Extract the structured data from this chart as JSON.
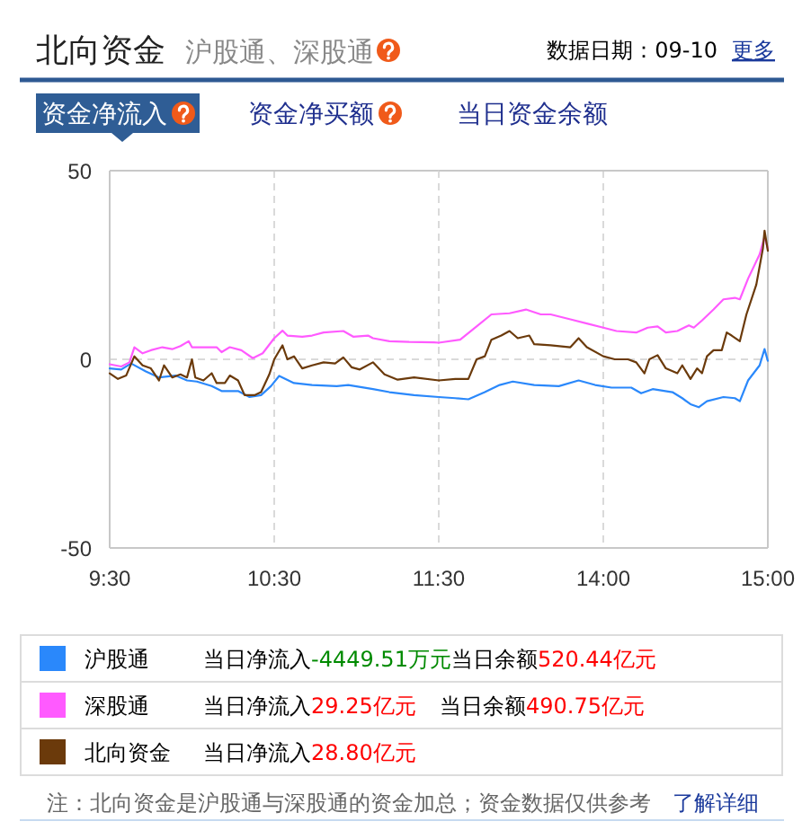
{
  "chart_data": [
    {
      "type": "line",
      "title": "北向资金",
      "subtitle": "沪股通、深股通",
      "xlim": [
        9.5,
        11.5
      ],
      "xticks": [
        {
          "value": 9.5,
          "label": "9:30"
        },
        {
          "value": 10.5,
          "label": "10:30"
        },
        {
          "value": 11.5,
          "label": "11:30"
        }
      ],
      "ylim": [
        -50,
        50
      ],
      "yticks": [
        -50,
        0,
        50
      ],
      "grid": true,
      "legend": "bottom",
      "series": [
        {
          "name": "沪股通",
          "color": "#2a88fb",
          "x": [
            9.5,
            9.57,
            9.63,
            9.72,
            9.8,
            9.9,
            9.97,
            10.03,
            10.12,
            10.18,
            10.28,
            10.35,
            10.42,
            10.48,
            10.53,
            10.62,
            10.73,
            10.88,
            10.95,
            11.1,
            11.2,
            11.35,
            11.5
          ],
          "values": [
            -2.4,
            -2.7,
            -1.1,
            -3.2,
            -4.8,
            -4.3,
            -5.6,
            -5.9,
            -7.1,
            -8.4,
            -8.4,
            -10.0,
            -9.5,
            -7.1,
            -4.4,
            -6.3,
            -6.8,
            -7.1,
            -6.8,
            -7.9,
            -8.7,
            -9.5,
            -10.0
          ]
        },
        {
          "name": "深股通",
          "color": "#ff5aff",
          "x": [
            9.5,
            9.57,
            9.62,
            9.65,
            9.7,
            9.75,
            9.82,
            9.88,
            9.93,
            9.98,
            10.0,
            10.08,
            10.15,
            10.18,
            10.23,
            10.3,
            10.37,
            10.43,
            10.5,
            10.55,
            10.58,
            10.67,
            10.73,
            10.8,
            10.92,
            10.98,
            11.07,
            11.1,
            11.2,
            11.32,
            11.47,
            11.5
          ],
          "values": [
            -1.3,
            -1.9,
            -0.8,
            3.2,
            1.6,
            2.4,
            3.2,
            2.7,
            3.5,
            4.8,
            3.2,
            3.2,
            3.2,
            1.9,
            3.2,
            2.4,
            0.3,
            1.6,
            5.6,
            7.6,
            6.3,
            6.0,
            6.3,
            7.1,
            7.5,
            6.0,
            6.3,
            5.6,
            4.8,
            4.6,
            4.5,
            4.4
          ]
        },
        {
          "name": "北向资金",
          "color": "#6b3a0b",
          "x": [
            9.5,
            9.55,
            9.6,
            9.65,
            9.7,
            9.75,
            9.8,
            9.83,
            9.88,
            9.93,
            9.97,
            10.0,
            10.02,
            10.07,
            10.12,
            10.15,
            10.2,
            10.23,
            10.28,
            10.32,
            10.38,
            10.42,
            10.47,
            10.5,
            10.55,
            10.58,
            10.62,
            10.67,
            10.73,
            10.8,
            10.87,
            10.92,
            10.97,
            11.02,
            11.1,
            11.17,
            11.25,
            11.35,
            11.5
          ],
          "values": [
            -3.7,
            -5.2,
            -4.3,
            0.8,
            -1.6,
            -2.4,
            -5.6,
            -1.6,
            -4.8,
            -4.0,
            -4.8,
            0.0,
            -4.8,
            -5.6,
            -3.7,
            -6.3,
            -6.3,
            -4.3,
            -5.6,
            -9.5,
            -9.5,
            -8.7,
            -4.0,
            0.0,
            3.7,
            0.0,
            0.8,
            -2.4,
            -1.6,
            -0.8,
            -1.1,
            0.5,
            -2.1,
            -2.7,
            -0.8,
            -4.0,
            -5.4,
            -4.8,
            -5.6
          ]
        }
      ],
      "annotations": [
        "数据日期：09-10",
        "更多",
        "资金净流入",
        "资金净买额",
        "当日资金余额",
        "当日净流入",
        "-4449.51万元",
        "当日余额",
        "520.44亿元",
        "当日净流入",
        "29.25亿元",
        "当日余额",
        "490.75亿元",
        "当日净流入",
        "28.80亿元",
        "注：北向资金是沪股通与深股通的资金加总；资金数据仅供参考",
        "了解详细"
      ]
    },
    {
      "type": "line",
      "xlim": [
        13,
        15
      ],
      "xticks": [
        {
          "value": 13,
          "label": null
        },
        {
          "value": 14,
          "label": "14:00"
        },
        {
          "value": 15,
          "label": "15:00"
        }
      ],
      "ylim": [
        -50,
        50
      ],
      "yticks": [
        -50,
        0,
        50
      ],
      "tick_labels": "x",
      "grid": true,
      "series": [
        {
          "color": "#2a88fb",
          "x": [
            13,
            13.1,
            13.18,
            13.28,
            13.37,
            13.45,
            13.58,
            13.73,
            13.85,
            13.95,
            14.05,
            14.17,
            14.23,
            14.3,
            14.42,
            14.48,
            14.53,
            14.58,
            14.63,
            14.73,
            14.8,
            14.83,
            14.88,
            14.95,
            14.98,
            15
          ],
          "values": [
            -10.0,
            -10.3,
            -10.6,
            -8.7,
            -6.8,
            -5.9,
            -6.8,
            -7.1,
            -5.6,
            -6.8,
            -7.5,
            -7.5,
            -9.0,
            -7.9,
            -8.7,
            -10.3,
            -11.9,
            -12.7,
            -11.1,
            -10.0,
            -10.3,
            -11.1,
            -5.6,
            -1.6,
            2.7,
            -0.4
          ]
        },
        {
          "color": "#ff5aff",
          "x": [
            13,
            13.13,
            13.23,
            13.32,
            13.43,
            13.53,
            13.62,
            13.68,
            13.8,
            13.9,
            14.0,
            14.08,
            14.2,
            14.27,
            14.33,
            14.38,
            14.45,
            14.52,
            14.55,
            14.6,
            14.67,
            14.73,
            14.8,
            14.83,
            14.88,
            14.95,
            14.98,
            15
          ],
          "values": [
            4.4,
            5.2,
            8.7,
            11.9,
            12.2,
            13.2,
            11.9,
            11.9,
            10.6,
            9.5,
            8.4,
            7.5,
            7.1,
            8.4,
            8.7,
            7.1,
            7.5,
            9.0,
            8.4,
            10.3,
            13.2,
            15.9,
            16.3,
            15.9,
            21.4,
            27.8,
            32.5,
            29.3
          ]
        },
        {
          "color": "#6b3a0b",
          "x": [
            13,
            13.1,
            13.18,
            13.23,
            13.28,
            13.32,
            13.38,
            13.43,
            13.48,
            13.55,
            13.58,
            13.68,
            13.8,
            13.85,
            13.9,
            14.0,
            14.07,
            14.15,
            14.2,
            14.25,
            14.28,
            14.33,
            14.38,
            14.45,
            14.48,
            14.53,
            14.57,
            14.6,
            14.63,
            14.67,
            14.72,
            14.75,
            14.78,
            14.83,
            14.87,
            14.93,
            14.97,
            14.98,
            15
          ],
          "values": [
            -5.6,
            -5.2,
            -5.2,
            0.0,
            0.8,
            5.2,
            6.3,
            7.5,
            5.6,
            6.3,
            4.0,
            3.7,
            3.2,
            5.6,
            3.2,
            0.8,
            0.0,
            0.0,
            -0.8,
            -3.7,
            0.0,
            1.1,
            -2.4,
            -3.7,
            -1.6,
            -5.2,
            -2.4,
            -3.7,
            0.8,
            2.4,
            2.4,
            7.1,
            6.3,
            4.8,
            11.9,
            19.8,
            29.4,
            34.1,
            28.8
          ]
        }
      ]
    }
  ]
}
